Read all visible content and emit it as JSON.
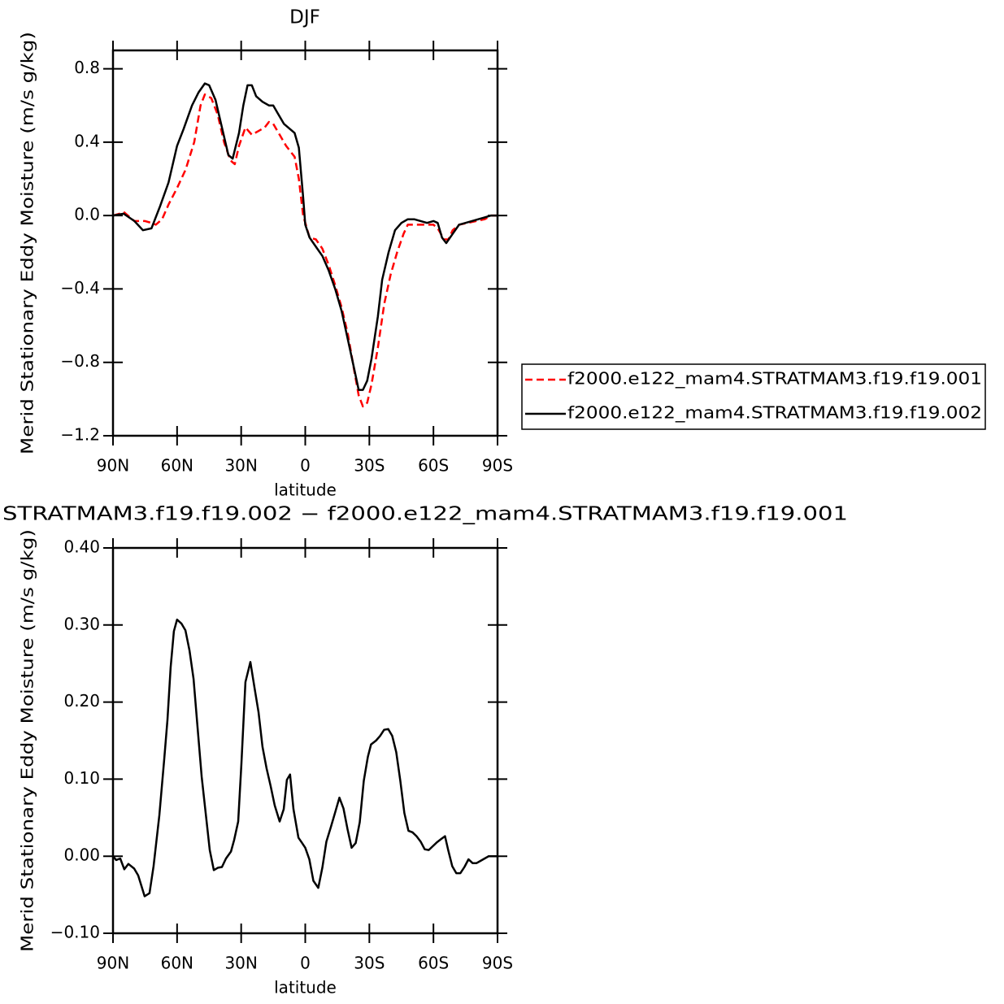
{
  "chart_data": [
    {
      "type": "line",
      "title": "DJF",
      "xlabel": "latitude",
      "ylabel": "Merid Stationary Eddy Moisture (m/s g/kg)",
      "xlim": [
        90,
        -90
      ],
      "xticks": [
        {
          "value": 90,
          "label": "90N"
        },
        {
          "value": 60,
          "label": "60N"
        },
        {
          "value": 30,
          "label": "30N"
        },
        0,
        {
          "value": -30,
          "label": "30S"
        },
        {
          "value": -60,
          "label": "60S"
        },
        {
          "value": -90,
          "label": "90S"
        }
      ],
      "ylim": [
        -1.2,
        0.9
      ],
      "yticks": [
        {
          "value": -1.2,
          "label": "−1.2"
        },
        {
          "value": -0.8,
          "label": "−0.8"
        },
        {
          "value": -0.4,
          "label": "−0.4"
        },
        {
          "value": 0,
          "label": "0.0"
        },
        0.4,
        0.8
      ],
      "legend": "right",
      "series": [
        {
          "name": "f2000.e122_mam4.STRATMAM3.f19.f19.001",
          "color": "#ff0000",
          "linestyle": "dashed",
          "x": [
            90,
            87,
            85,
            82,
            80,
            75,
            72,
            70,
            67,
            64,
            60,
            56,
            52,
            49,
            47,
            44,
            41,
            38,
            35,
            33,
            31,
            28,
            25,
            22,
            19,
            17,
            15,
            12,
            9,
            5,
            3,
            1,
            -2,
            -5,
            -8,
            -11,
            -14,
            -17,
            -20,
            -23,
            -25,
            -27,
            -29,
            -31,
            -34,
            -37,
            -40,
            -43,
            -46,
            -48,
            -52,
            -56,
            -60,
            -62,
            -65,
            -67,
            -69,
            -72,
            -76,
            -80,
            -84,
            -87,
            -90
          ],
          "values": [
            0.0,
            0.01,
            0.02,
            -0.01,
            -0.03,
            -0.03,
            -0.04,
            -0.05,
            -0.02,
            0.06,
            0.15,
            0.25,
            0.4,
            0.6,
            0.66,
            0.64,
            0.55,
            0.4,
            0.3,
            0.28,
            0.38,
            0.48,
            0.44,
            0.46,
            0.48,
            0.51,
            0.5,
            0.44,
            0.38,
            0.32,
            0.2,
            0.0,
            -0.12,
            -0.13,
            -0.18,
            -0.27,
            -0.38,
            -0.5,
            -0.65,
            -0.85,
            -0.98,
            -1.04,
            -1.02,
            -0.92,
            -0.72,
            -0.48,
            -0.32,
            -0.2,
            -0.1,
            -0.05,
            -0.05,
            -0.05,
            -0.05,
            -0.07,
            -0.13,
            -0.13,
            -0.08,
            -0.05,
            -0.04,
            -0.03,
            -0.02,
            0.0,
            0.0
          ]
        },
        {
          "name": "f2000.e122_mam4.STRATMAM3.f19.f19.002",
          "color": "#000000",
          "linestyle": "solid",
          "x": [
            90,
            85,
            80,
            76,
            72,
            68,
            64,
            60,
            57,
            53,
            50,
            47,
            45,
            42,
            39,
            36,
            34,
            31,
            29,
            27,
            25,
            23,
            20,
            17,
            15,
            13,
            10,
            7,
            5,
            3,
            1,
            0,
            -2,
            -5,
            -8,
            -11,
            -14,
            -17,
            -20,
            -23,
            -25,
            -27,
            -29,
            -31,
            -34,
            -36,
            -39,
            -42,
            -45,
            -48,
            -51,
            -54,
            -57,
            -60,
            -62,
            -64,
            -66,
            -69,
            -72,
            -75,
            -78,
            -81,
            -84,
            -87,
            -90
          ],
          "values": [
            0.0,
            0.01,
            -0.03,
            -0.08,
            -0.07,
            0.05,
            0.18,
            0.38,
            0.47,
            0.6,
            0.67,
            0.72,
            0.71,
            0.63,
            0.48,
            0.33,
            0.31,
            0.45,
            0.6,
            0.71,
            0.71,
            0.65,
            0.62,
            0.6,
            0.6,
            0.56,
            0.5,
            0.47,
            0.45,
            0.37,
            0.1,
            -0.05,
            -0.12,
            -0.17,
            -0.22,
            -0.3,
            -0.4,
            -0.52,
            -0.68,
            -0.84,
            -0.95,
            -0.95,
            -0.9,
            -0.78,
            -0.55,
            -0.35,
            -0.2,
            -0.08,
            -0.04,
            -0.02,
            -0.02,
            -0.03,
            -0.04,
            -0.03,
            -0.04,
            -0.12,
            -0.15,
            -0.1,
            -0.05,
            -0.04,
            -0.03,
            -0.02,
            -0.01,
            0.0,
            0.0
          ]
        }
      ]
    },
    {
      "type": "line",
      "title": "STRATMAM3.f19.f19.002 − f2000.e122_mam4.STRATMAM3.f19.f19.001",
      "xlabel": "latitude",
      "ylabel": "Merid Stationary Eddy Moisture (m/s g/kg)",
      "xlim": [
        90,
        -90
      ],
      "xticks": [
        {
          "value": 90,
          "label": "90N"
        },
        {
          "value": 60,
          "label": "60N"
        },
        {
          "value": 30,
          "label": "30N"
        },
        0,
        {
          "value": -30,
          "label": "30S"
        },
        {
          "value": -60,
          "label": "60S"
        },
        {
          "value": -90,
          "label": "90S"
        }
      ],
      "ylim": [
        -0.1,
        0.4
      ],
      "yticks": [
        {
          "value": -0.1,
          "label": "−0.10"
        },
        {
          "value": 0,
          "label": "0.00"
        },
        {
          "value": 0.1,
          "label": "0.10"
        },
        {
          "value": 0.2,
          "label": "0.20"
        },
        {
          "value": 0.3,
          "label": "0.30"
        },
        {
          "value": 0.4,
          "label": "0.40"
        }
      ],
      "series": [
        {
          "color": "#000000",
          "linestyle": "solid",
          "x": [
            90,
            88.5,
            86.6,
            84.7,
            82.8,
            80.1,
            78.2,
            75.2,
            72.9,
            71,
            68.3,
            66,
            64.5,
            63,
            61.5,
            60,
            58,
            56.1,
            54.2,
            52.3,
            50.4,
            48.5,
            46.6,
            44.7,
            42.8,
            40.9,
            39,
            37.1,
            34.8,
            33.3,
            31.4,
            29.9,
            28,
            25.7,
            23.8,
            21.9,
            20,
            18.1,
            16.2,
            14.3,
            12,
            10.1,
            8.6,
            7.1,
            5.5,
            3.2,
            1.7,
            0,
            -1.9,
            -3.8,
            -6.1,
            -8,
            -9.9,
            -12.2,
            -14.1,
            -16,
            -17.9,
            -19.8,
            -21.7,
            -23.6,
            -25.5,
            -27.4,
            -29.3,
            -30.8,
            -33.1,
            -35,
            -36.9,
            -38.8,
            -40.7,
            -42.6,
            -44.5,
            -46.4,
            -48.3,
            -50.2,
            -52.1,
            -54,
            -55.9,
            -57.8,
            -59.7,
            -61.6,
            -63.5,
            -65.4,
            -66.9,
            -68.8,
            -70.7,
            -72.6,
            -74.5,
            -76.4,
            -78.3,
            -80.2,
            -82.1,
            -84,
            -85.9,
            -87.8,
            -90
          ],
          "values": [
            0.0,
            -0.005,
            -0.003,
            -0.017,
            -0.01,
            -0.016,
            -0.025,
            -0.052,
            -0.048,
            -0.013,
            0.053,
            0.127,
            0.177,
            0.245,
            0.292,
            0.307,
            0.302,
            0.293,
            0.267,
            0.23,
            0.166,
            0.103,
            0.056,
            0.008,
            -0.018,
            -0.015,
            -0.014,
            -0.003,
            0.006,
            0.021,
            0.045,
            0.119,
            0.226,
            0.252,
            0.219,
            0.187,
            0.142,
            0.114,
            0.091,
            0.066,
            0.045,
            0.061,
            0.099,
            0.106,
            0.061,
            0.024,
            0.018,
            0.011,
            -0.004,
            -0.032,
            -0.041,
            -0.015,
            0.019,
            0.04,
            0.058,
            0.076,
            0.062,
            0.035,
            0.011,
            0.017,
            0.044,
            0.098,
            0.129,
            0.145,
            0.15,
            0.156,
            0.164,
            0.165,
            0.156,
            0.135,
            0.098,
            0.056,
            0.033,
            0.031,
            0.026,
            0.019,
            0.009,
            0.008,
            0.013,
            0.018,
            0.022,
            0.026,
            0.008,
            -0.013,
            -0.022,
            -0.022,
            -0.014,
            -0.004,
            -0.009,
            -0.009,
            -0.006,
            -0.003,
            0.0,
            0.0,
            0.0
          ]
        }
      ]
    }
  ]
}
